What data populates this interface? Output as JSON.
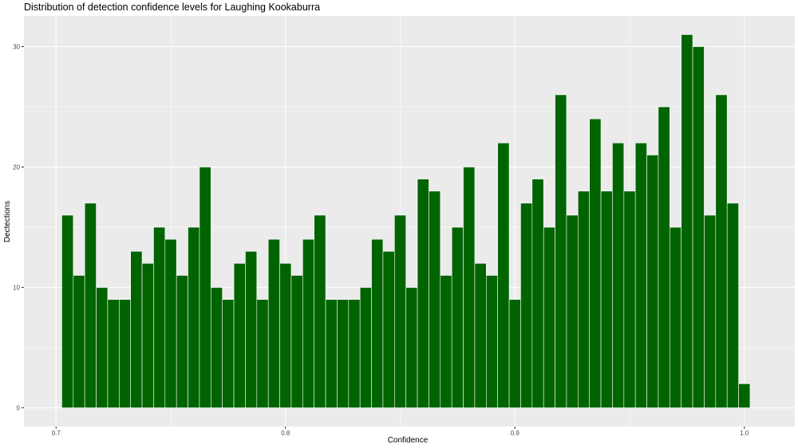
{
  "chart_data": {
    "type": "bar",
    "title": "Distribution of detection confidence levels for Laughing Kookaburra",
    "xlabel": "Confidence",
    "ylabel": "Dectections",
    "xlim": [
      0.686,
      1.022
    ],
    "ylim": [
      -1.55,
      32.55
    ],
    "x_ticks": [
      0.7,
      0.8,
      0.9,
      1.0
    ],
    "x_tick_labels": [
      "0.7",
      "0.8",
      "0.9",
      "1.0"
    ],
    "y_ticks": [
      0,
      10,
      20,
      30
    ],
    "y_tick_labels": [
      "0",
      "10",
      "20",
      "30"
    ],
    "bin_start": 0.7025,
    "bin_width": 0.005,
    "values": [
      16,
      11,
      17,
      10,
      9,
      9,
      13,
      12,
      15,
      14,
      11,
      15,
      20,
      10,
      9,
      12,
      13,
      9,
      14,
      12,
      11,
      14,
      16,
      9,
      9,
      9,
      10,
      14,
      13,
      16,
      10,
      19,
      18,
      11,
      15,
      20,
      12,
      11,
      22,
      9,
      17,
      19,
      15,
      26,
      16,
      18,
      24,
      18,
      22,
      18,
      22,
      21,
      25,
      15,
      31,
      30,
      16,
      26,
      17,
      2
    ],
    "bar_color": "#006400",
    "panel_background": "#ebebeb",
    "grid": true
  }
}
